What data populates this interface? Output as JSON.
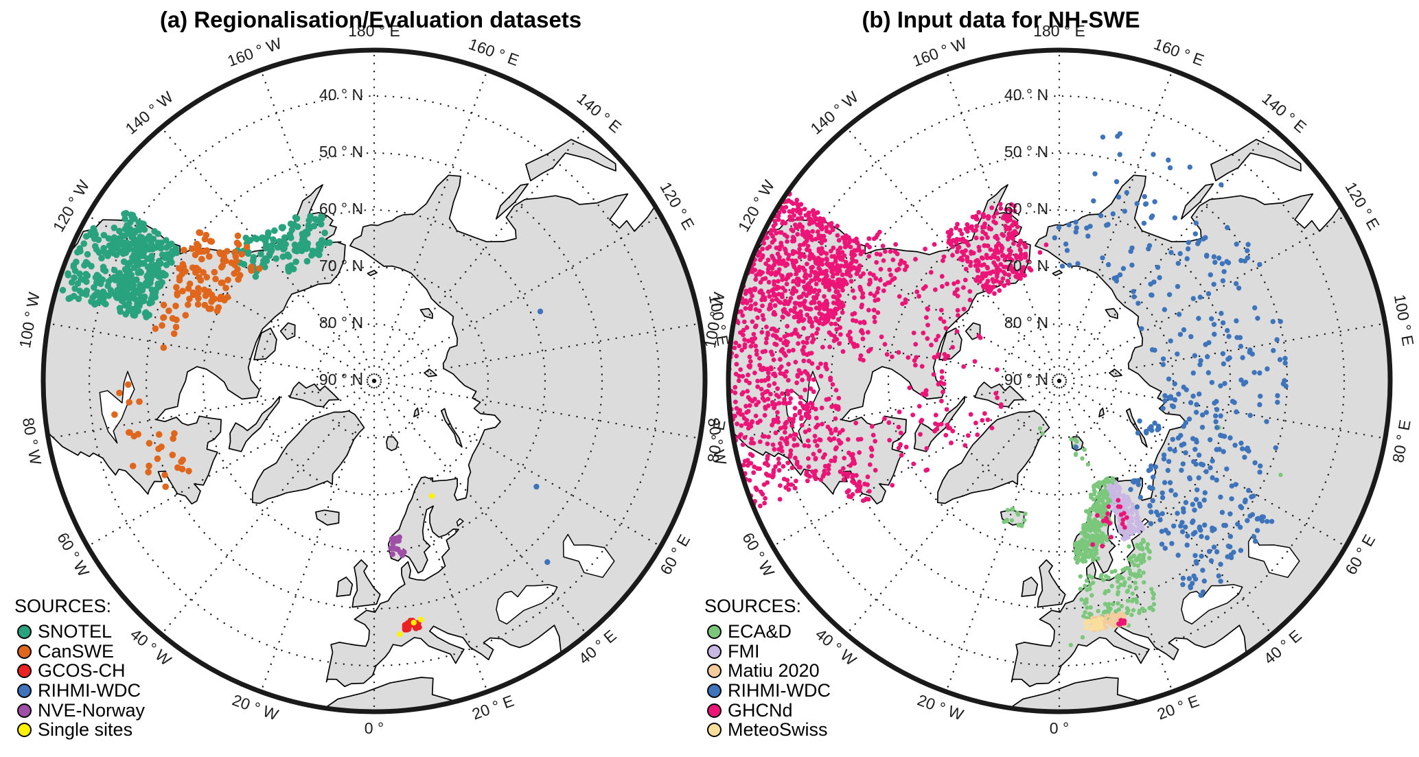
{
  "figure": {
    "background": "#ffffff"
  },
  "graticule": {
    "lat_labels": [
      {
        "value": 40,
        "text": "40 ° N"
      },
      {
        "value": 50,
        "text": "50 ° N"
      },
      {
        "value": 60,
        "text": "60 ° N"
      },
      {
        "value": 70,
        "text": "70 ° N"
      },
      {
        "value": 80,
        "text": "80 ° N"
      },
      {
        "value": 90,
        "text": "90 ° N"
      }
    ],
    "lon_labels": [
      {
        "value": 180,
        "text": "180 ° E"
      },
      {
        "value": 160,
        "text": "160 ° E"
      },
      {
        "value": 140,
        "text": "140 ° E"
      },
      {
        "value": 120,
        "text": "120 ° E"
      },
      {
        "value": 100,
        "text": "100 ° E"
      },
      {
        "value": 80,
        "text": "80 ° E"
      },
      {
        "value": 60,
        "text": "60 ° E"
      },
      {
        "value": 40,
        "text": "40 ° E"
      },
      {
        "value": 20,
        "text": "20 ° E"
      },
      {
        "value": 0,
        "text": "0 °"
      },
      {
        "value": -20,
        "text": "20 ° W"
      },
      {
        "value": -40,
        "text": "40 ° W"
      },
      {
        "value": -60,
        "text": "60 ° W"
      },
      {
        "value": -80,
        "text": "80 ° W"
      },
      {
        "value": -100,
        "text": "100 ° W"
      },
      {
        "value": -120,
        "text": "120 ° W"
      },
      {
        "value": -140,
        "text": "140 ° W"
      },
      {
        "value": -160,
        "text": "160 ° W"
      }
    ]
  },
  "colors": {
    "land": "#dcdcdc",
    "coast": "#000000",
    "ocean": "#ffffff",
    "rim": "#1a1a1a",
    "graticule": "#1c1c1c",
    "pole": "#111111"
  },
  "panels": [
    {
      "id": "a",
      "title": "(a) Regionalisation/Evaluation datasets",
      "legend_heading": "SOURCES:",
      "sources": [
        {
          "name": "SNOTEL",
          "color": "#29a27e",
          "r": 4.8,
          "boxes": [
            [
              37,
              49,
              -124.5,
              -116,
              130
            ],
            [
              33,
              44,
              -119,
              -105,
              130
            ],
            [
              42,
              49,
              -117,
              -105,
              110
            ],
            [
              58,
              66,
              -163,
              -141,
              95
            ],
            [
              56,
              62.5,
              -141,
              -131,
              30
            ]
          ],
          "points": []
        },
        {
          "name": "CanSWE",
          "color": "#e0661b",
          "r": 4.8,
          "boxes": [
            [
              49,
              60.5,
              -131,
              -113.5,
              85
            ],
            [
              54,
              62,
              -137,
              -129,
              14
            ],
            [
              50,
              56,
              -113,
              -96,
              14
            ],
            [
              45,
              54.5,
              -79,
              -63,
              20
            ],
            [
              43.5,
              49,
              -90,
              -75,
              7
            ]
          ],
          "points": []
        },
        {
          "name": "GCOS-CH",
          "color": "#ea2224",
          "r": 4.2,
          "boxes": [
            [
              45.9,
              47.5,
              6.9,
              10.4,
              26
            ]
          ],
          "points": []
        },
        {
          "name": "RIHMI-WDC",
          "color": "#3d74bb",
          "r": 4.2,
          "boxes": [],
          "points": [
            [
              58.4,
              112.7
            ],
            [
              56,
              56.9
            ],
            [
              46,
              43.7
            ]
          ]
        },
        {
          "name": "NVE-Norway",
          "color": "#a04fa8",
          "r": 4.2,
          "boxes": [
            [
              58.9,
              62.3,
              5.6,
              10.3,
              16
            ]
          ],
          "points": []
        },
        {
          "name": "Single sites",
          "color": "#fff200",
          "r": 4.2,
          "boxes": [],
          "points": [
            [
              67.4,
              26.6
            ],
            [
              45.3,
              5.8
            ],
            [
              47,
              9.3
            ],
            [
              47.3,
              11.1
            ]
          ]
        }
      ]
    },
    {
      "id": "b",
      "title": "(b) Input data for NH-SWE",
      "legend_heading": "SOURCES:",
      "sources": [
        {
          "name": "ECA&D",
          "color": "#7bc87c",
          "r": 3.2,
          "boxes": [
            [
              57.8,
              61.5,
              5.2,
              12.5,
              80
            ],
            [
              60.5,
              64.5,
              8,
              17,
              75
            ],
            [
              63.5,
              67,
              11.5,
              20,
              60
            ],
            [
              66.5,
              69.3,
              14.5,
              25.5,
              55
            ],
            [
              69,
              70.9,
              17.5,
              29,
              30
            ],
            [
              47,
              55.5,
              5.8,
              15.5,
              60
            ],
            [
              49,
              55.3,
              15.5,
              24,
              42
            ],
            [
              54.5,
              59,
              21,
              28.5,
              30
            ],
            [
              46,
              49,
              16,
              23.5,
              15
            ],
            [
              63.4,
              66.2,
              -23,
              -13.8,
              15
            ],
            [
              76.5,
              79.6,
              11,
              22.5,
              7
            ]
          ],
          "points": [
            [
              81,
              -22
            ],
            [
              80.3,
              -17.5
            ],
            [
              74.5,
              19
            ],
            [
              75.8,
              16.5
            ],
            [
              60.8,
              73.7
            ],
            [
              47.8,
              67
            ],
            [
              43.6,
              2.5
            ],
            [
              44.8,
              5.2
            ],
            [
              46.2,
              14.9
            ],
            [
              45.4,
              15.8
            ]
          ]
        },
        {
          "name": "FMI",
          "color": "#c9b7e4",
          "r": 2.9,
          "boxes": [
            [
              59.9,
              63,
              21.8,
              30.3,
              75
            ],
            [
              63,
              66.5,
              22.5,
              31,
              75
            ],
            [
              66.5,
              69.7,
              24,
              29.6,
              45
            ]
          ],
          "points": []
        },
        {
          "name": "Matiu 2020",
          "color": "#f5cb9a",
          "r": 2.1,
          "boxes": [
            [
              45.6,
              48.1,
              7.6,
              15.6,
              170
            ]
          ],
          "points": []
        },
        {
          "name": "RIHMI-WDC",
          "color": "#3d74bb",
          "r": 3.7,
          "boxes": [
            [
              44.5,
              61,
              31,
              60,
              110
            ],
            [
              61,
              68.5,
              31,
              60,
              40
            ],
            [
              50,
              72,
              60,
              95,
              95
            ],
            [
              49,
              73,
              95,
              140,
              95
            ],
            [
              45,
              70,
              140,
              172,
              45
            ],
            [
              61,
              70,
              172,
              182,
              10
            ],
            [
              71,
              76.3,
              52,
              66,
              6
            ]
          ],
          "points": [
            [
              78,
              14.2
            ]
          ]
        },
        {
          "name": "GHCNd",
          "color": "#ec1577",
          "r": 3.4,
          "boxes": [
            [
              32,
              49,
              -125,
              -103,
              620
            ],
            [
              30,
              47,
              -103,
              -67,
              470
            ],
            [
              47.5,
              56,
              -130,
              -96,
              130
            ],
            [
              47.5,
              51.5,
              -96,
              -58,
              80
            ],
            [
              51.5,
              56,
              -80,
              -58,
              15
            ],
            [
              56,
              70,
              -141,
              -95,
              70
            ],
            [
              63,
              70,
              -95,
              -62,
              25
            ],
            [
              56,
              62,
              -80,
              -62,
              12
            ],
            [
              57,
              71,
              -166,
              -141,
              260
            ],
            [
              68,
              80,
              -120,
              -60,
              22
            ],
            [
              60,
              76,
              -71,
              -52,
              10
            ],
            [
              59.5,
              68,
              11.5,
              27,
              8
            ],
            [
              60.5,
              66,
              23,
              28,
              6
            ],
            [
              60,
              65,
              14,
              19,
              5
            ],
            [
              45.8,
              46.6,
              13.7,
              15.2,
              12
            ]
          ],
          "points": [
            [
              66,
              185.5
            ],
            [
              67.2,
              188.5
            ]
          ]
        },
        {
          "name": "MeteoSwiss",
          "color": "#fadf9c",
          "r": 2.4,
          "boxes": [
            [
              45.9,
              47.7,
              6,
              10.3,
              80
            ]
          ],
          "points": []
        }
      ]
    }
  ]
}
